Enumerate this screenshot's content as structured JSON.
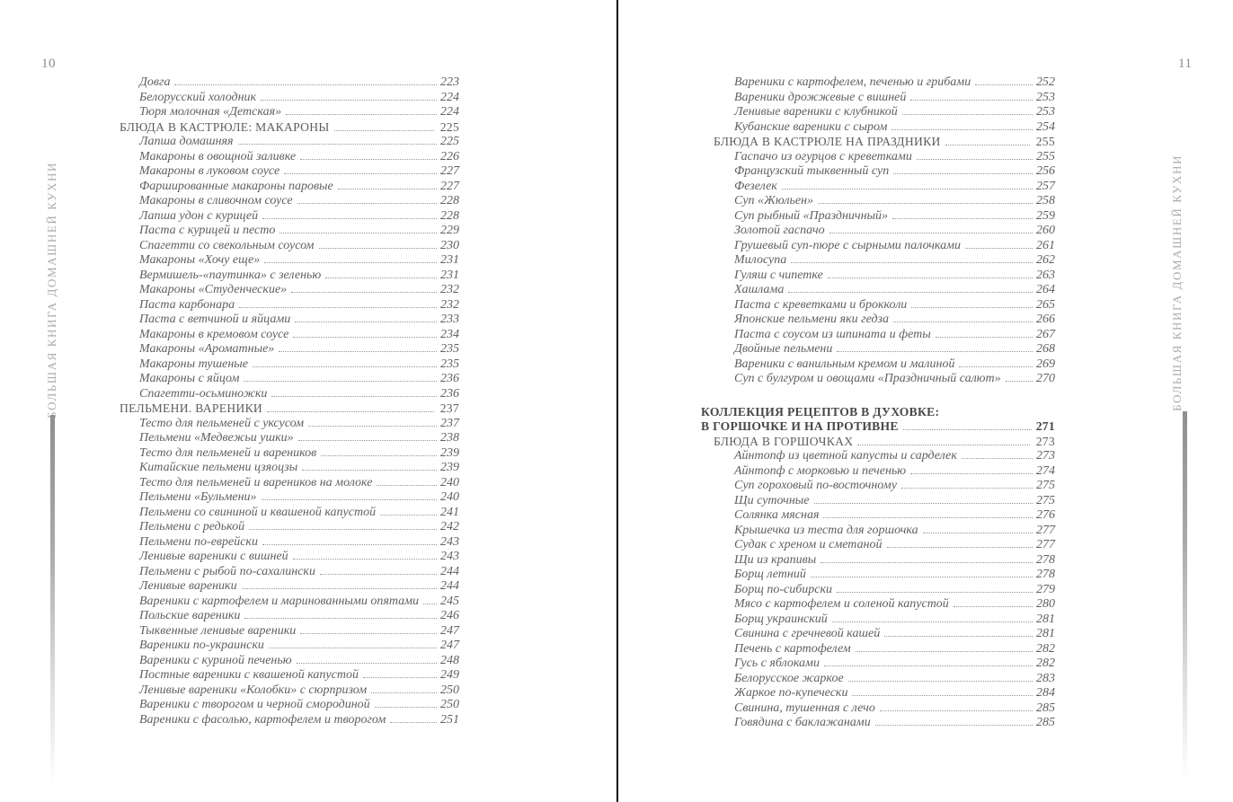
{
  "spine_title": "БОЛЬШАЯ КНИГА ДОМАШНЕЙ КУХНИ",
  "colors": {
    "entry_text": "#606060",
    "part_header": "#474747",
    "spine_text": "#a9a9a9",
    "divider": "#0d0d0d"
  },
  "left_page": {
    "page_number": "10",
    "entries": [
      {
        "label": "Довга",
        "page": "223",
        "level": "item"
      },
      {
        "label": "Белорусский холодник",
        "page": "224",
        "level": "item"
      },
      {
        "label": "Тюря молочная «Детская»",
        "page": "224",
        "level": "item"
      },
      {
        "label": "БЛЮДА В КАСТРЮЛЕ: МАКАРОНЫ",
        "page": "225",
        "level": "section"
      },
      {
        "label": "Лапша домашняя",
        "page": "225",
        "level": "item"
      },
      {
        "label": "Макароны в овощной заливке",
        "page": "226",
        "level": "item"
      },
      {
        "label": "Макароны в луковом соусе",
        "page": "227",
        "level": "item"
      },
      {
        "label": "Фаршированные макароны паровые",
        "page": "227",
        "level": "item"
      },
      {
        "label": "Макароны в сливочном соусе",
        "page": "228",
        "level": "item"
      },
      {
        "label": "Лапша удон с курицей",
        "page": "228",
        "level": "item"
      },
      {
        "label": "Паста с курицей и песто",
        "page": "229",
        "level": "item"
      },
      {
        "label": "Спагетти со свекольным соусом",
        "page": "230",
        "level": "item"
      },
      {
        "label": "Макароны «Хочу еще»",
        "page": "231",
        "level": "item"
      },
      {
        "label": "Вермишель-«паутинка» с зеленью",
        "page": "231",
        "level": "item"
      },
      {
        "label": "Макароны «Студенческие»",
        "page": "232",
        "level": "item"
      },
      {
        "label": "Паста карбонара",
        "page": "232",
        "level": "item"
      },
      {
        "label": "Паста с ветчиной и яйцами",
        "page": "233",
        "level": "item"
      },
      {
        "label": "Макароны в кремовом соусе",
        "page": "234",
        "level": "item"
      },
      {
        "label": "Макароны «Ароматные»",
        "page": "235",
        "level": "item"
      },
      {
        "label": "Макароны тушеные",
        "page": "235",
        "level": "item"
      },
      {
        "label": "Макароны с яйцом",
        "page": "236",
        "level": "item"
      },
      {
        "label": "Спагетти-осьминожки",
        "page": "236",
        "level": "item"
      },
      {
        "label": "ПЕЛЬМЕНИ. ВАРЕНИКИ",
        "page": "237",
        "level": "section"
      },
      {
        "label": "Тесто для пельменей с уксусом",
        "page": "237",
        "level": "item"
      },
      {
        "label": "Пельмени «Медвежьи ушки»",
        "page": "238",
        "level": "item"
      },
      {
        "label": "Тесто для пельменей и вареников",
        "page": "239",
        "level": "item"
      },
      {
        "label": "Китайские пельмени цзяоцзы",
        "page": "239",
        "level": "item"
      },
      {
        "label": "Тесто для пельменей и вареников на молоке",
        "page": "240",
        "level": "item"
      },
      {
        "label": "Пельмени «Бульмени»",
        "page": "240",
        "level": "item"
      },
      {
        "label": "Пельмени со свининой и квашеной капустой",
        "page": "241",
        "level": "item"
      },
      {
        "label": "Пельмени с редькой",
        "page": "242",
        "level": "item"
      },
      {
        "label": "Пельмени по-еврейски",
        "page": "243",
        "level": "item"
      },
      {
        "label": "Ленивые вареники с вишней",
        "page": "243",
        "level": "item"
      },
      {
        "label": "Пельмени с рыбой по-сахалински",
        "page": "244",
        "level": "item"
      },
      {
        "label": "Ленивые вареники",
        "page": "244",
        "level": "item"
      },
      {
        "label": "Вареники с картофелем и маринованными опятами",
        "page": "245",
        "level": "item"
      },
      {
        "label": "Польские вареники",
        "page": "246",
        "level": "item"
      },
      {
        "label": "Тыквенные ленивые вареники",
        "page": "247",
        "level": "item"
      },
      {
        "label": "Вареники по-украински",
        "page": "247",
        "level": "item"
      },
      {
        "label": "Вареники с куриной печенью",
        "page": "248",
        "level": "item"
      },
      {
        "label": "Постные вареники с квашеной капустой",
        "page": "249",
        "level": "item"
      },
      {
        "label": "Ленивые вареники «Колобки» с сюрпризом",
        "page": "250",
        "level": "item"
      },
      {
        "label": "Вареники с творогом и черной смородиной",
        "page": "250",
        "level": "item"
      },
      {
        "label": "Вареники с фасолью, картофелем и творогом",
        "page": "251",
        "level": "item"
      }
    ]
  },
  "right_page": {
    "page_number": "11",
    "entries": [
      {
        "label": "Вареники с картофелем, печенью и грибами",
        "page": "252",
        "level": "item"
      },
      {
        "label": "Вареники дрожжевые с вишней",
        "page": "253",
        "level": "item"
      },
      {
        "label": "Ленивые вареники с клубникой",
        "page": "253",
        "level": "item"
      },
      {
        "label": "Кубанские вареники с сыром",
        "page": "254",
        "level": "item"
      },
      {
        "label": "БЛЮДА В КАСТРЮЛЕ НА ПРАЗДНИКИ",
        "page": "255",
        "level": "section"
      },
      {
        "label": "Гаспачо из огурцов с креветками",
        "page": "255",
        "level": "item"
      },
      {
        "label": "Французский тыквенный суп",
        "page": "256",
        "level": "item"
      },
      {
        "label": "Фезелек",
        "page": "257",
        "level": "item"
      },
      {
        "label": "Суп «Жюльен»",
        "page": "258",
        "level": "item"
      },
      {
        "label": "Суп рыбный «Праздничный»",
        "page": "259",
        "level": "item"
      },
      {
        "label": "Золотой гаспачо",
        "page": "260",
        "level": "item"
      },
      {
        "label": "Грушевый суп-пюре с сырными палочками",
        "page": "261",
        "level": "item"
      },
      {
        "label": "Милосупа",
        "page": "262",
        "level": "item"
      },
      {
        "label": "Гуляш с чипетке",
        "page": "263",
        "level": "item"
      },
      {
        "label": "Хашлама",
        "page": "264",
        "level": "item"
      },
      {
        "label": "Паста с креветками и брокколи",
        "page": "265",
        "level": "item"
      },
      {
        "label": "Японские пельмени яки гедза",
        "page": "266",
        "level": "item"
      },
      {
        "label": "Паста с соусом из шпината и феты",
        "page": "267",
        "level": "item"
      },
      {
        "label": "Двойные пельмени",
        "page": "268",
        "level": "item"
      },
      {
        "label": "Вареники с ванильным кремом и малиной",
        "page": "269",
        "level": "item"
      },
      {
        "label": "Суп с булгуром и овощами «Праздничный салют»",
        "page": "270",
        "level": "item"
      },
      {
        "label": "КОЛЛЕКЦИЯ РЕЦЕПТОВ В ДУХОВКЕ:",
        "page": "",
        "level": "part",
        "gap": true
      },
      {
        "label": "В ГОРШОЧКЕ И НА ПРОТИВНЕ",
        "page": "271",
        "level": "part"
      },
      {
        "label": "БЛЮДА В ГОРШОЧКАХ",
        "page": "273",
        "level": "section"
      },
      {
        "label": "Айнтопф из цветной капусты и сарделек",
        "page": "273",
        "level": "item"
      },
      {
        "label": "Айнтопф с морковью и печенью",
        "page": "274",
        "level": "item"
      },
      {
        "label": "Суп гороховый по-восточному",
        "page": "275",
        "level": "item"
      },
      {
        "label": "Щи суточные",
        "page": "275",
        "level": "item"
      },
      {
        "label": "Солянка мясная",
        "page": "276",
        "level": "item"
      },
      {
        "label": "Крышечка из теста для горшочка",
        "page": "277",
        "level": "item"
      },
      {
        "label": "Судак с хреном и сметаной",
        "page": "277",
        "level": "item"
      },
      {
        "label": "Щи из крапивы",
        "page": "278",
        "level": "item"
      },
      {
        "label": "Борщ летний",
        "page": "278",
        "level": "item"
      },
      {
        "label": "Борщ по-сибирски",
        "page": "279",
        "level": "item"
      },
      {
        "label": "Мясо с картофелем и соленой капустой",
        "page": "280",
        "level": "item"
      },
      {
        "label": "Борщ украинский",
        "page": "281",
        "level": "item"
      },
      {
        "label": "Свинина с гречневой кашей",
        "page": "281",
        "level": "item"
      },
      {
        "label": "Печень с картофелем",
        "page": "282",
        "level": "item"
      },
      {
        "label": "Гусь с яблоками",
        "page": "282",
        "level": "item"
      },
      {
        "label": "Белорусское жаркое",
        "page": "283",
        "level": "item"
      },
      {
        "label": "Жаркое по-купечески",
        "page": "284",
        "level": "item"
      },
      {
        "label": "Свинина, тушенная с лечо",
        "page": "285",
        "level": "item"
      },
      {
        "label": "Говядина с баклажанами",
        "page": "285",
        "level": "item"
      }
    ]
  }
}
